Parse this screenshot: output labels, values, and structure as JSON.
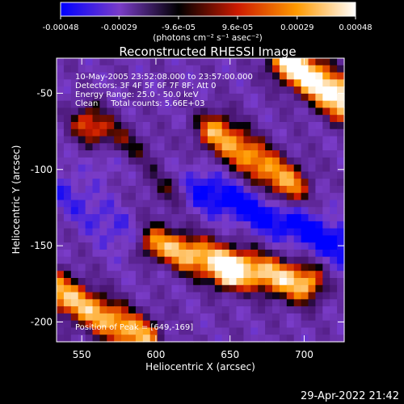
{
  "chart_data": {
    "type": "heatmap",
    "title": "Reconstructed RHESSI Image",
    "xlabel": "Heliocentric X (arcsec)",
    "ylabel": "Heliocentric Y (arcsec)",
    "xlim": [
      533,
      727
    ],
    "ylim": [
      -213,
      -27
    ],
    "xticks": [
      550,
      600,
      650,
      700
    ],
    "yticks": [
      -50,
      -100,
      -150,
      -200
    ],
    "colorbar": {
      "range": [
        -0.00048,
        0.00048
      ],
      "tick_values": [
        -0.00048,
        -0.00029,
        -9.6e-05,
        9.6e-05,
        0.00029,
        0.00048
      ],
      "tick_labels": [
        "-0.00048",
        "-0.00029",
        "-9.6e-05",
        "9.6e-05",
        "0.00029",
        "0.00048"
      ],
      "unit_label": "(photons cm⁻² s⁻¹ asec⁻²)",
      "colors": [
        "#0000ff",
        "#7a3cc8",
        "#000000",
        "#cc1a00",
        "#ff9a00",
        "#ffffff"
      ]
    },
    "annotations": [
      "10-May-2005 23:52:08.000 to 23:57:00.000",
      "Detectors: 3F 4F 5F 6F 7F 8F; Att 0",
      "Energy Range: 25.0 - 50.0 keV",
      "Clean     Total counts: 5.66E+03"
    ],
    "peak_label": "Position of Peak = [649,-169]",
    "peak_position": [
      649,
      -169
    ],
    "grid": false,
    "features": [
      {
        "kind": "positive-ridge",
        "x1": 690,
        "y1": -30,
        "x2": 727,
        "y2": -55,
        "strength": 1.0
      },
      {
        "kind": "positive-ridge",
        "x1": 640,
        "y1": -75,
        "x2": 690,
        "y2": -110,
        "strength": 0.7
      },
      {
        "kind": "positive-ridge",
        "x1": 555,
        "y1": -70,
        "x2": 610,
        "y2": -110,
        "strength": 0.55
      },
      {
        "kind": "positive-ridge",
        "x1": 600,
        "y1": -150,
        "x2": 700,
        "y2": -175,
        "strength": 0.8
      },
      {
        "kind": "positive-ridge",
        "x1": 533,
        "y1": -180,
        "x2": 590,
        "y2": -210,
        "strength": 0.75
      },
      {
        "kind": "negative-trough",
        "x1": 570,
        "y1": -90,
        "x2": 727,
        "y2": -150,
        "strength": 0.9
      },
      {
        "kind": "negative-trough",
        "x1": 533,
        "y1": -110,
        "x2": 600,
        "y2": -160,
        "strength": 0.45
      }
    ]
  },
  "footer": {
    "timestamp": "29-Apr-2022 21:42"
  }
}
